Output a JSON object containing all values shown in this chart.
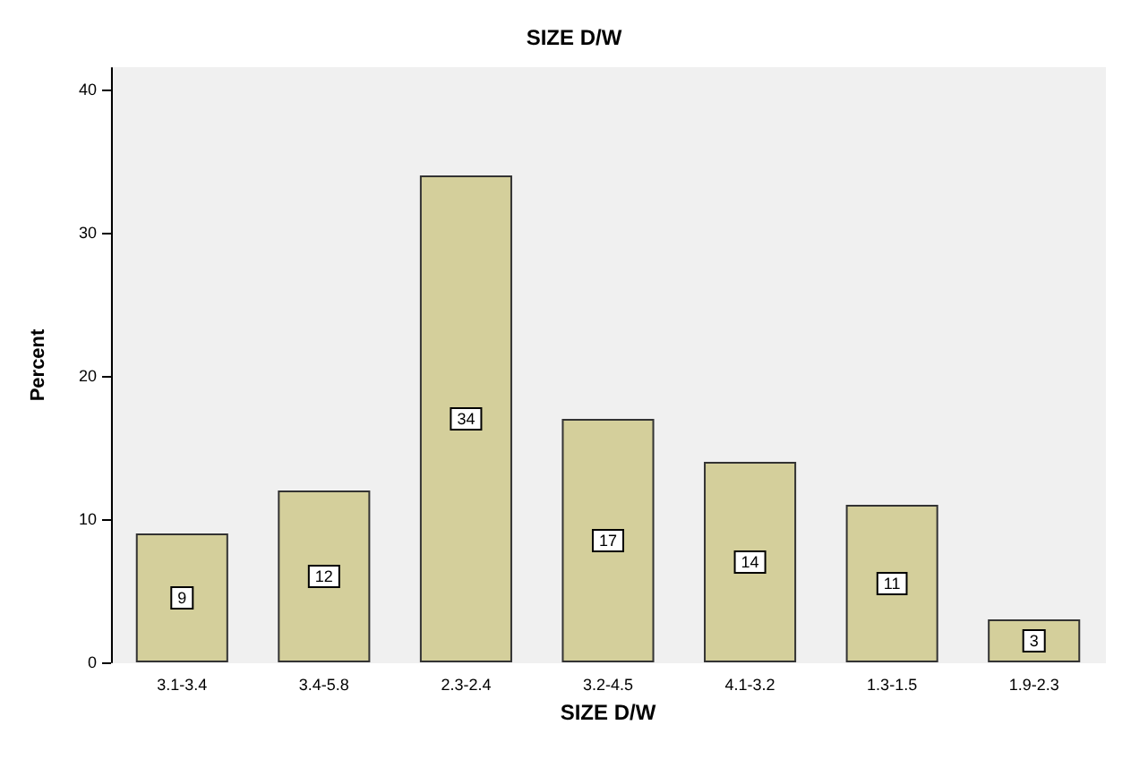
{
  "chart_data": {
    "type": "bar",
    "title": "SIZE D/W",
    "xlabel": "SIZE D/W",
    "ylabel": "Percent",
    "categories": [
      "3.1-3.4",
      "3.4-5.8",
      "2.3-2.4",
      "3.2-4.5",
      "4.1-3.2",
      "1.3-1.5",
      "1.9-2.3"
    ],
    "values": [
      9,
      12,
      34,
      17,
      14,
      11,
      3
    ],
    "color": "#d4cf9b",
    "ylim": [
      0,
      41.5
    ],
    "yticks": [
      0,
      10,
      20,
      30,
      40
    ],
    "grid": false,
    "data_labels": true
  }
}
